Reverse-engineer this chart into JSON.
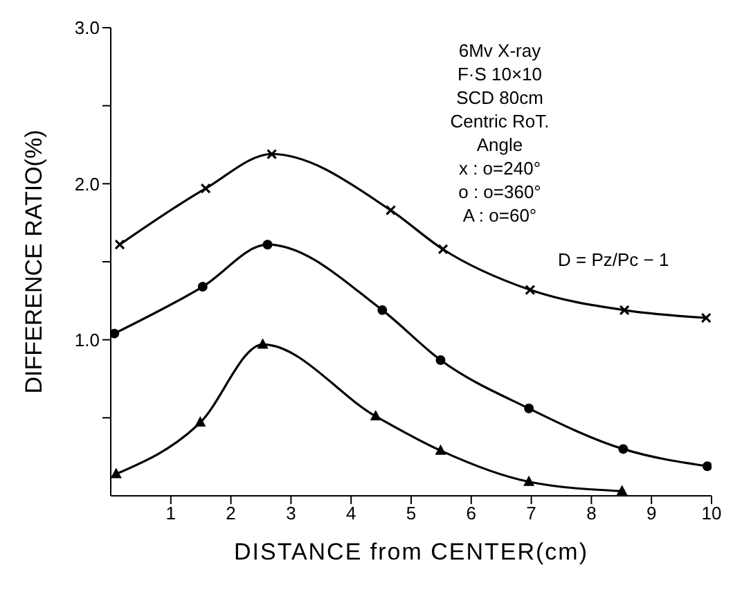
{
  "chart_data": {
    "type": "line",
    "xlabel": "DISTANCE from CENTER(cm)",
    "ylabel": "DIFFERENCE RATIO(%)",
    "xlim": [
      0,
      10
    ],
    "xticks": [
      1,
      2,
      3,
      4,
      5,
      6,
      7,
      8,
      9,
      10
    ],
    "ylim": [
      0,
      3
    ],
    "yticks": [
      {
        "value": 0.5,
        "label": null
      },
      {
        "value": 1,
        "label": "1.0"
      },
      {
        "value": 1.5,
        "label": null
      },
      {
        "value": 2,
        "label": "2.0"
      },
      {
        "value": 2.5,
        "label": null
      },
      {
        "value": 3,
        "label": "3.0"
      }
    ],
    "line_style": "solid",
    "series": [
      {
        "color": "#000000",
        "marker": "cross",
        "x": [
          0.15,
          1.58,
          2.68,
          4.66,
          5.53,
          6.98,
          8.55,
          9.91
        ],
        "values": [
          1.61,
          1.97,
          2.19,
          1.83,
          1.58,
          1.32,
          1.19,
          1.14
        ]
      },
      {
        "color": "#000000",
        "marker": "circle",
        "x": [
          0.06,
          1.53,
          2.61,
          4.52,
          5.49,
          6.96,
          8.53,
          9.93
        ],
        "values": [
          1.04,
          1.34,
          1.61,
          1.19,
          0.87,
          0.56,
          0.3,
          0.19
        ]
      },
      {
        "color": "#000000",
        "marker": "triangle",
        "x": [
          0.09,
          1.49,
          2.53,
          4.41,
          5.49,
          6.96,
          8.51
        ],
        "values": [
          0.14,
          0.47,
          0.97,
          0.51,
          0.29,
          0.09,
          0.03
        ]
      }
    ],
    "annotations": [
      "6Mv X-ray",
      "F·S 10×10",
      "SCD 80cm",
      "Centric RoT.",
      "Angle",
      "x : o=240°",
      "o : o=360°",
      "A : o=60°",
      "D = Pz/Pc − 1"
    ]
  }
}
